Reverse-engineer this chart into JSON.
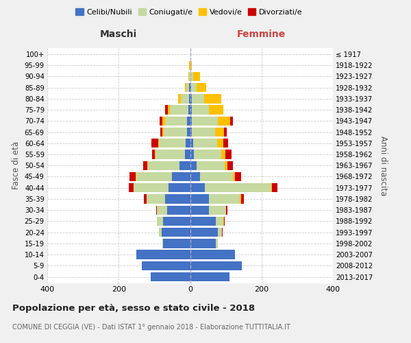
{
  "age_groups_bottom_to_top": [
    "0-4",
    "5-9",
    "10-14",
    "15-19",
    "20-24",
    "25-29",
    "30-34",
    "35-39",
    "40-44",
    "45-49",
    "50-54",
    "55-59",
    "60-64",
    "65-69",
    "70-74",
    "75-79",
    "80-84",
    "85-89",
    "90-94",
    "95-99",
    "100+"
  ],
  "birth_years_bottom_to_top": [
    "2013-2017",
    "2008-2012",
    "2003-2007",
    "1998-2002",
    "1993-1997",
    "1988-1992",
    "1983-1987",
    "1978-1982",
    "1973-1977",
    "1968-1972",
    "1963-1967",
    "1958-1962",
    "1953-1957",
    "1948-1952",
    "1943-1947",
    "1938-1942",
    "1933-1937",
    "1928-1932",
    "1923-1927",
    "1918-1922",
    "≤ 1917"
  ],
  "maschi": {
    "celibe": [
      110,
      135,
      150,
      75,
      80,
      75,
      65,
      70,
      60,
      50,
      30,
      15,
      12,
      8,
      8,
      5,
      3,
      2,
      0,
      0,
      0
    ],
    "coniugato": [
      0,
      0,
      0,
      2,
      8,
      18,
      28,
      52,
      98,
      100,
      88,
      82,
      75,
      65,
      62,
      52,
      22,
      8,
      3,
      0,
      0
    ],
    "vedovo": [
      0,
      0,
      0,
      0,
      0,
      0,
      0,
      0,
      1,
      2,
      2,
      2,
      3,
      5,
      8,
      5,
      8,
      5,
      2,
      2,
      0
    ],
    "divorziato": [
      0,
      0,
      0,
      0,
      0,
      1,
      2,
      8,
      12,
      18,
      12,
      8,
      18,
      5,
      8,
      8,
      0,
      0,
      0,
      0,
      0
    ]
  },
  "femmine": {
    "nubile": [
      110,
      145,
      125,
      72,
      78,
      72,
      52,
      52,
      42,
      28,
      18,
      10,
      8,
      5,
      5,
      5,
      5,
      3,
      0,
      0,
      0
    ],
    "coniugata": [
      0,
      0,
      0,
      5,
      12,
      22,
      48,
      88,
      185,
      92,
      78,
      78,
      68,
      65,
      72,
      48,
      35,
      15,
      8,
      2,
      0
    ],
    "vedova": [
      0,
      0,
      0,
      0,
      0,
      1,
      1,
      2,
      3,
      5,
      8,
      10,
      18,
      25,
      35,
      40,
      48,
      28,
      20,
      2,
      1
    ],
    "divorziata": [
      0,
      0,
      0,
      0,
      1,
      1,
      3,
      8,
      15,
      18,
      15,
      18,
      12,
      8,
      8,
      0,
      0,
      0,
      0,
      0,
      0
    ]
  },
  "colors": {
    "celibe": "#4472c4",
    "coniugato": "#c5d9a0",
    "vedovo": "#ffc000",
    "divorziato": "#cc0000"
  },
  "title": "Popolazione per età, sesso e stato civile - 2018",
  "subtitle": "COMUNE DI CEGGIA (VE) - Dati ISTAT 1° gennaio 2018 - Elaborazione TUTTITALIA.IT",
  "xlabel_left": "Maschi",
  "xlabel_right": "Femmine",
  "ylabel": "Fasce di età",
  "ylabel_right": "Anni di nascita",
  "xlim": 400,
  "legend_labels": [
    "Celibi/Nubili",
    "Coniugati/e",
    "Vedovi/e",
    "Divorziati/e"
  ],
  "background_color": "#f0f0f0",
  "plot_bg_color": "#ffffff"
}
